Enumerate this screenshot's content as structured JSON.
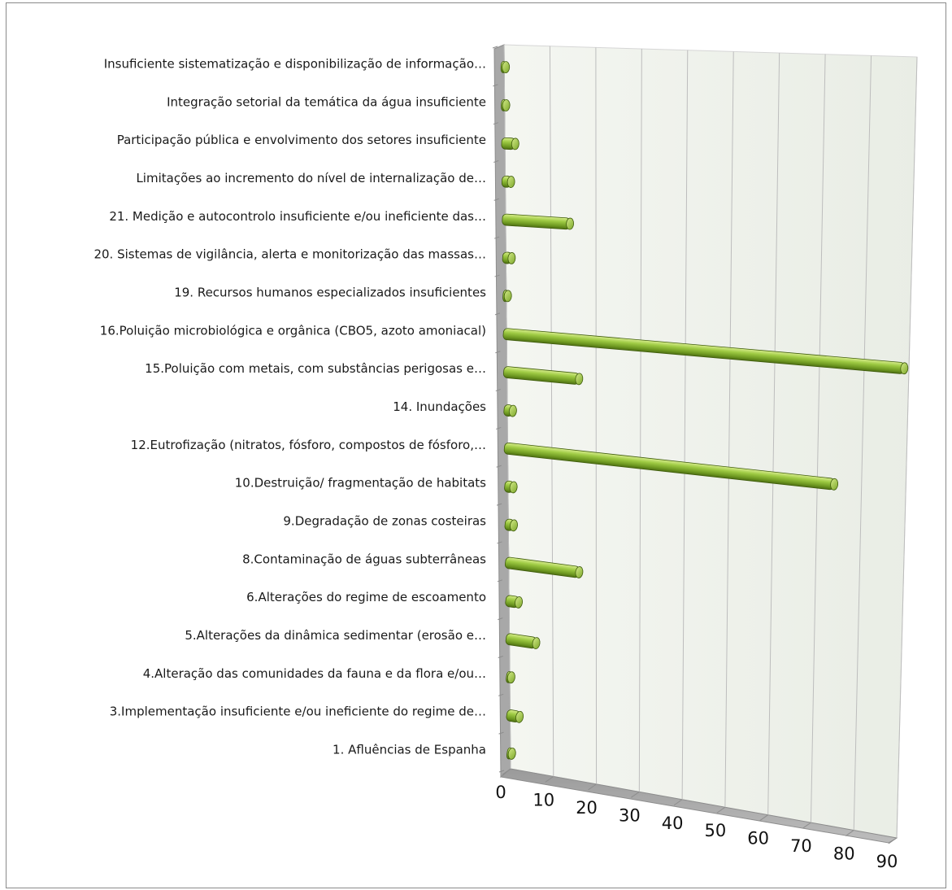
{
  "chart_data": {
    "type": "bar",
    "orientation": "horizontal",
    "style": "3d-cylinder",
    "bar_color": "#8fbf3a",
    "grid": true,
    "legend": "none",
    "xlim": [
      0,
      90
    ],
    "x_ticks": [
      "0",
      "10",
      "20",
      "30",
      "40",
      "50",
      "60",
      "70",
      "80",
      "90"
    ],
    "categories": [
      "Insuficiente sistematização e disponibilização de informação…",
      "Integração setorial da temática da água insuficiente",
      "Participação pública e envolvimento dos setores insuficiente",
      "Limitações ao incremento do nível de internalização de…",
      "21. Medição e autocontrolo insuficiente e/ou ineficiente das…",
      "20. Sistemas de vigilância, alerta e monitorização das massas…",
      "19. Recursos humanos especializados insuficientes",
      "16.Poluição microbiológica e orgânica (CBO5, azoto amoniacal)",
      "15.Poluição com metais, com substâncias perigosas e…",
      "14. Inundações",
      "12.Eutrofização (nitratos, fósforo, compostos de fósforo,…",
      "10.Destruição/ fragmentação de habitats",
      "9.Degradação de zonas costeiras",
      "8.Contaminação de águas subterrâneas",
      "6.Alterações do regime de escoamento",
      "5.Alterações da dinâmica sedimentar (erosão e…",
      "4.Alteração das comunidades da fauna e da flora e/ou…",
      "3.Implementação insuficiente e/ou ineficiente do regime de…",
      "1. Afluências de Espanha"
    ],
    "values": [
      1,
      1,
      3,
      2,
      15,
      2,
      1,
      90,
      17,
      2,
      75,
      2,
      2,
      17,
      3,
      7,
      1,
      3,
      1
    ]
  }
}
